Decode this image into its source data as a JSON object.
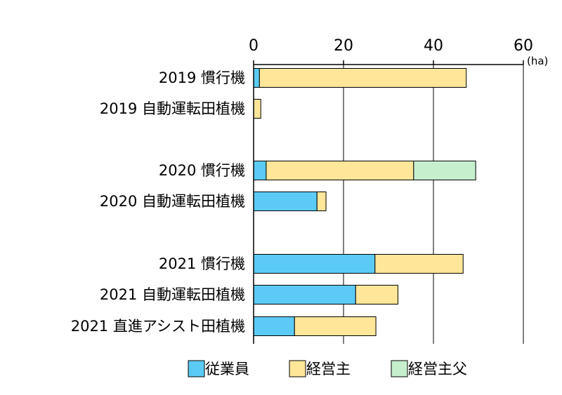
{
  "chart_data": {
    "type": "bar",
    "orientation": "horizontal",
    "stacked": true,
    "title": "",
    "xlabel": "",
    "ylabel": "",
    "unit": "(ha)",
    "xlim": [
      0,
      60
    ],
    "xticks": [
      "0",
      "20",
      "40",
      "60"
    ],
    "grid": true,
    "legend_position": "bottom",
    "categories": [
      "2019 慣行機",
      "2019 自動運転田植機",
      "2020 慣行機",
      "2020 自動運転田植機",
      "2021 慣行機",
      "2021 自動運転田植機",
      "2021 直進アシスト田植機"
    ],
    "category_groups": [
      0,
      0,
      1,
      1,
      2,
      2,
      2
    ],
    "series": [
      {
        "name": "従業員",
        "color": "#5bcbf5",
        "values": [
          1.3,
          0,
          2.8,
          14.1,
          27.0,
          22.7,
          9.1
        ]
      },
      {
        "name": "経営主",
        "color": "#ffe699",
        "values": [
          46.0,
          1.6,
          32.8,
          2.0,
          19.6,
          9.4,
          18.1
        ]
      },
      {
        "name": "経営主父",
        "color": "#c6efce",
        "values": [
          0,
          0,
          13.8,
          0,
          0,
          0,
          0
        ]
      }
    ]
  }
}
